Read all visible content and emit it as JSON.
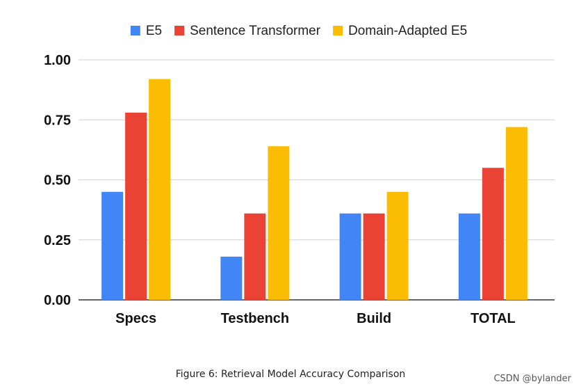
{
  "chart_data": {
    "type": "bar",
    "title": "",
    "xlabel": "",
    "ylabel": "",
    "categories": [
      "Specs",
      "Testbench",
      "Build",
      "TOTAL"
    ],
    "series": [
      {
        "name": "E5",
        "color": "#4285f4",
        "values": [
          0.45,
          0.18,
          0.36,
          0.36
        ]
      },
      {
        "name": "Sentence Transformer",
        "color": "#ea4335",
        "values": [
          0.78,
          0.36,
          0.36,
          0.55
        ]
      },
      {
        "name": "Domain-Adapted E5",
        "color": "#fbbc04",
        "values": [
          0.92,
          0.64,
          0.45,
          0.72
        ]
      }
    ],
    "ylim": [
      0,
      1
    ],
    "yticks": [
      "0.00",
      "0.25",
      "0.50",
      "0.75",
      "1.00"
    ],
    "grid": true,
    "legend": "top-center"
  },
  "caption": "Figure 6: Retrieval Model Accuracy Comparison",
  "watermark": "CSDN @bylander"
}
